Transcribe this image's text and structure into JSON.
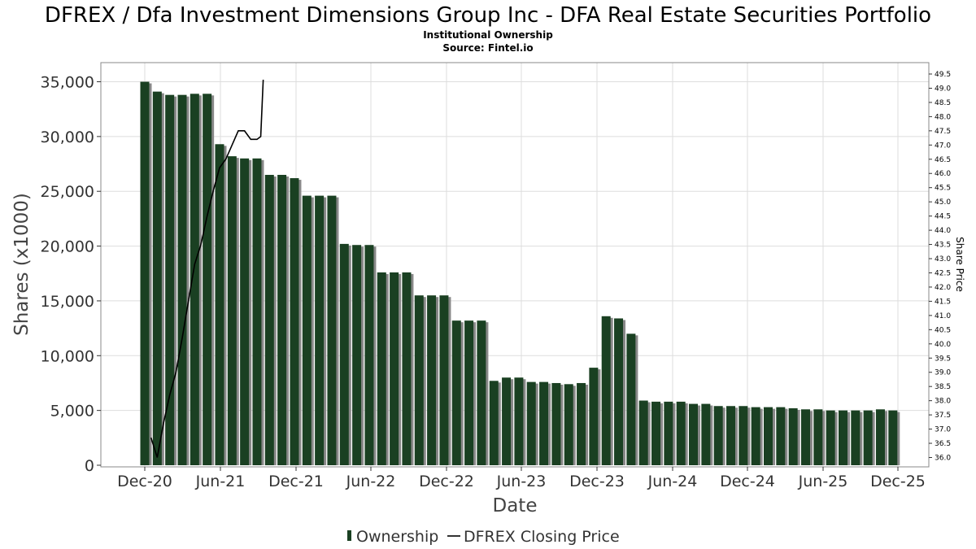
{
  "chart_data": {
    "type": "bar",
    "title": "DFREX / Dfa Investment Dimensions Group Inc - DFA Real Estate Securities Portfolio",
    "subtitle_lines": [
      "Institutional Ownership",
      "Source: Fintel.io"
    ],
    "xlabel": "Date",
    "ylabel": "Shares (x1000)",
    "y2label": "Share Price",
    "ylim": [
      0,
      36000
    ],
    "yticks": [
      0,
      5000,
      10000,
      15000,
      20000,
      25000,
      30000,
      35000
    ],
    "ytick_labels": [
      "0",
      "5,000",
      "10,000",
      "15,000",
      "20,000",
      "25,000",
      "30,000",
      "35,000"
    ],
    "y2lim": [
      35.8,
      49.7
    ],
    "y2ticks": [
      "36.0",
      "36.5",
      "37.0",
      "37.5",
      "38.0",
      "38.5",
      "39.0",
      "39.5",
      "40.0",
      "40.5",
      "41.0",
      "41.5",
      "42.0",
      "42.5",
      "43.0",
      "43.5",
      "44.0",
      "44.5",
      "45.0",
      "45.5",
      "46.0",
      "46.5",
      "47.0",
      "47.5",
      "48.0",
      "48.5",
      "49.0",
      "49.5"
    ],
    "xticks": [
      "Dec-20",
      "Jun-21",
      "Dec-21",
      "Jun-22",
      "Dec-22",
      "Jun-23",
      "Dec-23",
      "Jun-24",
      "Dec-24",
      "Jun-25",
      "Dec-25"
    ],
    "grid": true,
    "legend_position": "bottom",
    "colors": {
      "bar": "#1a4022",
      "bar_shadow": "#888888",
      "line": "#000000",
      "grid": "#dddddd",
      "axis": "#888888"
    },
    "series": [
      {
        "name": "Ownership",
        "values": [
          35000,
          34100,
          33800,
          33800,
          33900,
          33900,
          29300,
          28200,
          28000,
          28000,
          26500,
          26500,
          26200,
          24600,
          24600,
          24600,
          20200,
          20100,
          20100,
          17600,
          17600,
          17600,
          15500,
          15500,
          15500,
          13200,
          13200,
          13200,
          7700,
          8000,
          8000,
          7600,
          7600,
          7500,
          7400,
          7500,
          8900,
          13600,
          13400,
          12000,
          5900,
          5800,
          5800,
          5800,
          5600,
          5600,
          5400,
          5400,
          5400,
          5300,
          5300,
          5300,
          5200,
          5100,
          5100,
          5000,
          5000,
          5000,
          5000,
          5100,
          5000
        ]
      },
      {
        "name": "DFREX Closing Price",
        "points": [
          [
            0.5,
            36.7
          ],
          [
            1.0,
            36.0
          ],
          [
            1.5,
            37.2
          ],
          [
            2.0,
            38.2
          ],
          [
            2.5,
            39.0
          ],
          [
            3.0,
            40.2
          ],
          [
            3.5,
            41.5
          ],
          [
            4.0,
            42.8
          ],
          [
            4.5,
            43.5
          ],
          [
            5.0,
            44.5
          ],
          [
            5.5,
            45.4
          ],
          [
            6.0,
            46.2
          ],
          [
            6.5,
            46.5
          ],
          [
            7.0,
            47.0
          ],
          [
            7.5,
            47.5
          ],
          [
            8.0,
            47.5
          ],
          [
            8.5,
            47.2
          ],
          [
            9.0,
            47.2
          ],
          [
            9.3,
            47.3
          ],
          [
            9.5,
            49.3
          ]
        ]
      }
    ]
  }
}
